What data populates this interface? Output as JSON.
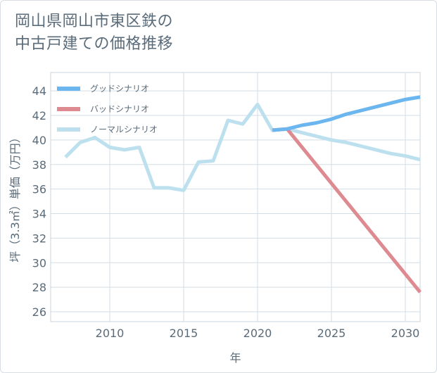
{
  "title": {
    "line1": "岡山県岡山市東区鉄の",
    "line2": "中古戸建ての価格推移"
  },
  "chart_data": {
    "type": "line",
    "xlabel": "年",
    "ylabel": "坪（3.3㎡）単価（万円）",
    "xlim": [
      2006,
      2031
    ],
    "ylim": [
      25.2,
      45.5
    ],
    "x_ticks": [
      2010,
      2015,
      2020,
      2025,
      2030
    ],
    "y_ticks": [
      26,
      28,
      30,
      32,
      34,
      36,
      38,
      40,
      42,
      44
    ],
    "grid": true,
    "legend_position": "top-left",
    "series": [
      {
        "name": "グッドシナリオ",
        "color": "#6cb6ef",
        "points": [
          [
            2021,
            40.8
          ],
          [
            2022,
            40.9
          ],
          [
            2023,
            41.2
          ],
          [
            2024,
            41.4
          ],
          [
            2025,
            41.7
          ],
          [
            2026,
            42.1
          ],
          [
            2027,
            42.4
          ],
          [
            2028,
            42.7
          ],
          [
            2029,
            43.0
          ],
          [
            2030,
            43.3
          ],
          [
            2031,
            43.5
          ]
        ]
      },
      {
        "name": "バッドシナリオ",
        "color": "#dd8a91",
        "points": [
          [
            2021,
            40.8
          ],
          [
            2022,
            40.9
          ],
          [
            2031,
            27.6
          ]
        ]
      },
      {
        "name": "ノーマルシナリオ",
        "color": "#bde0ef",
        "points": [
          [
            2007,
            38.6
          ],
          [
            2008,
            39.8
          ],
          [
            2009,
            40.2
          ],
          [
            2010,
            39.4
          ],
          [
            2011,
            39.2
          ],
          [
            2012,
            39.4
          ],
          [
            2013,
            36.1
          ],
          [
            2014,
            36.1
          ],
          [
            2015,
            35.9
          ],
          [
            2016,
            38.2
          ],
          [
            2017,
            38.3
          ],
          [
            2018,
            41.6
          ],
          [
            2019,
            41.3
          ],
          [
            2020,
            42.9
          ],
          [
            2021,
            40.8
          ],
          [
            2022,
            40.9
          ],
          [
            2023,
            40.6
          ],
          [
            2024,
            40.3
          ],
          [
            2025,
            40.0
          ],
          [
            2026,
            39.8
          ],
          [
            2027,
            39.5
          ],
          [
            2028,
            39.2
          ],
          [
            2029,
            38.9
          ],
          [
            2030,
            38.7
          ],
          [
            2031,
            38.4
          ]
        ]
      }
    ]
  }
}
